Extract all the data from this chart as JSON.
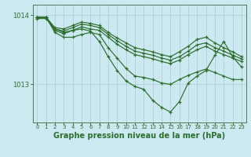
{
  "bg_color": "#cce8f0",
  "grid_color": "#b0d0d8",
  "line_color": "#2d6e2d",
  "xlabel": "Graphe pression niveau de la mer (hPa)",
  "xlabel_fontsize": 7.0,
  "ylim": [
    1012.45,
    1014.15
  ],
  "yticks": [
    1013,
    1014
  ],
  "xticks": [
    0,
    1,
    2,
    3,
    4,
    5,
    6,
    7,
    8,
    9,
    10,
    11,
    12,
    13,
    14,
    15,
    16,
    17,
    18,
    19,
    20,
    21,
    22,
    23
  ],
  "lines": [
    [
      1013.97,
      1013.97,
      1013.78,
      1013.73,
      1013.78,
      1013.83,
      1013.8,
      1013.78,
      1013.68,
      1013.58,
      1013.5,
      1013.43,
      1013.4,
      1013.37,
      1013.33,
      1013.3,
      1013.35,
      1013.43,
      1013.5,
      1013.55,
      1013.48,
      1013.43,
      1013.38,
      1013.33
    ],
    [
      1013.97,
      1013.97,
      1013.8,
      1013.77,
      1013.82,
      1013.87,
      1013.85,
      1013.82,
      1013.72,
      1013.63,
      1013.55,
      1013.48,
      1013.45,
      1013.42,
      1013.38,
      1013.35,
      1013.4,
      1013.48,
      1013.57,
      1013.6,
      1013.53,
      1013.48,
      1013.42,
      1013.37
    ],
    [
      1013.97,
      1013.97,
      1013.82,
      1013.8,
      1013.85,
      1013.9,
      1013.88,
      1013.85,
      1013.75,
      1013.67,
      1013.6,
      1013.53,
      1013.5,
      1013.47,
      1013.43,
      1013.4,
      1013.47,
      1013.55,
      1013.65,
      1013.68,
      1013.6,
      1013.53,
      1013.47,
      1013.4
    ],
    [
      1013.97,
      1013.97,
      1013.75,
      1013.68,
      1013.68,
      1013.72,
      1013.75,
      1013.72,
      1013.53,
      1013.38,
      1013.23,
      1013.12,
      1013.1,
      1013.07,
      1013.02,
      1013.0,
      1013.07,
      1013.13,
      1013.18,
      1013.22,
      1013.17,
      1013.12,
      1013.07,
      1013.07
    ],
    [
      1013.95,
      1013.95,
      1013.8,
      1013.75,
      1013.78,
      1013.8,
      1013.77,
      1013.62,
      1013.4,
      1013.2,
      1013.05,
      1012.97,
      1012.93,
      1012.77,
      1012.67,
      1012.6,
      1012.75,
      1013.02,
      1013.12,
      1013.2,
      1013.42,
      1013.62,
      1013.4,
      1013.25
    ]
  ]
}
